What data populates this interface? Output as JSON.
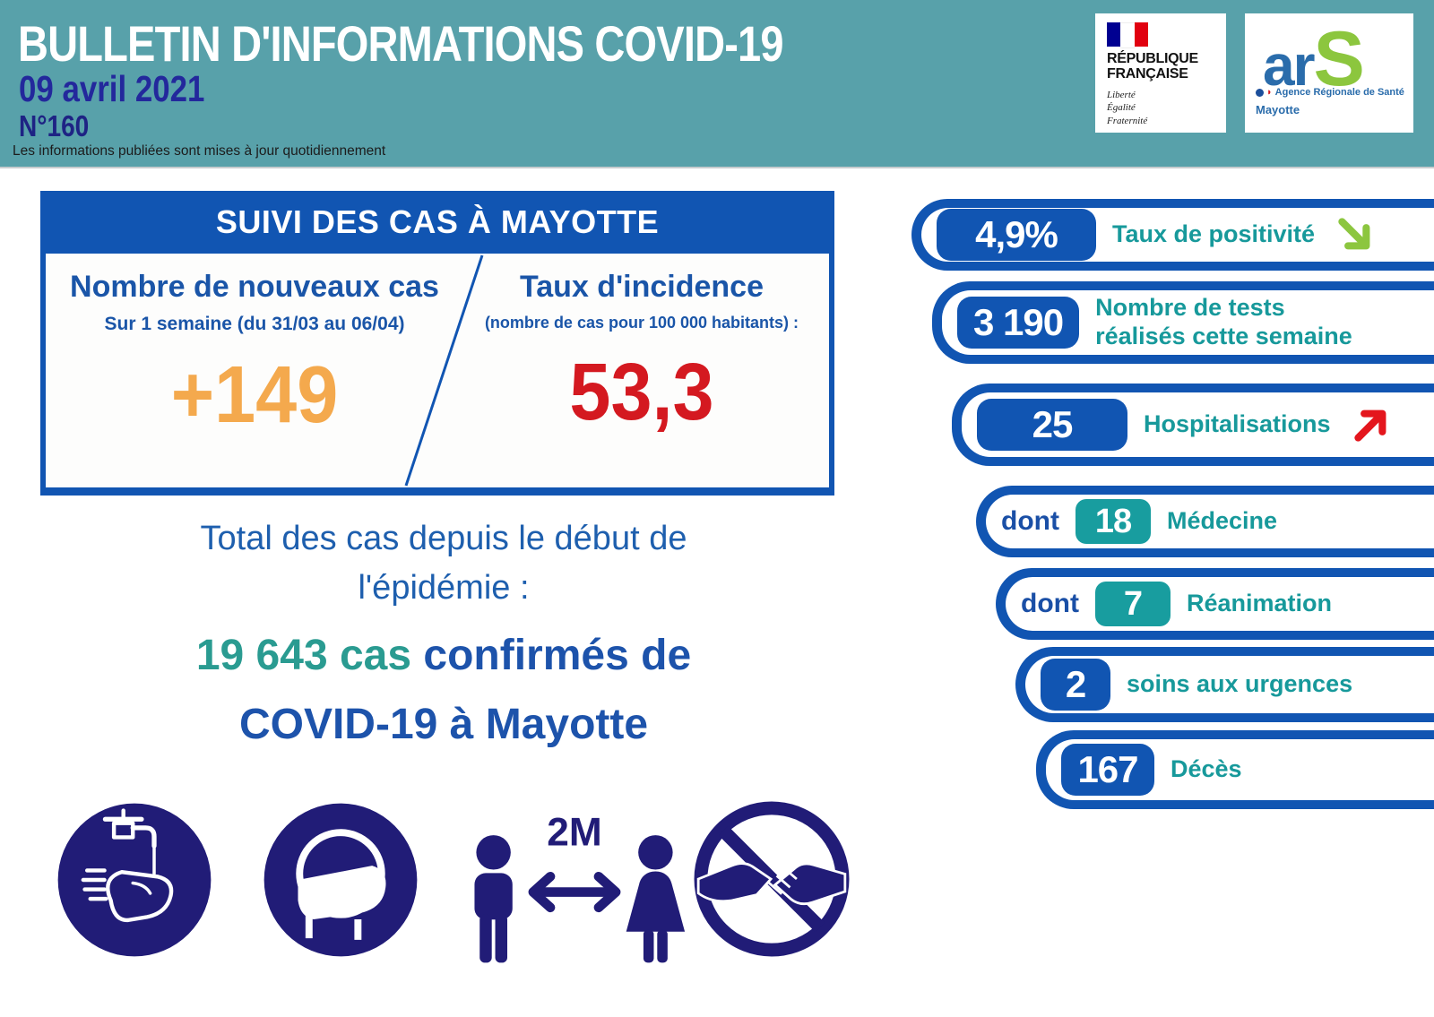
{
  "header": {
    "title": "BULLETIN D'INFORMATIONS COVID-19",
    "date": "09 avril 2021",
    "bulletin_number": "N°160",
    "note": "Les informations publiées sont mises à jour quotidiennement"
  },
  "logos": {
    "republique_francaise": {
      "line1": "RÉPUBLIQUE",
      "line2": "FRANÇAISE",
      "motto1": "Liberté",
      "motto2": "Égalité",
      "motto3": "Fraternité"
    },
    "ars": {
      "ar": "ar",
      "s": "S",
      "agency": "Agence Régionale de Santé",
      "region": "Mayotte"
    }
  },
  "case_card": {
    "title": "SUIVI DES CAS À MAYOTTE",
    "left": {
      "heading": "Nombre de nouveaux cas",
      "subheading": "Sur 1 semaine (du 31/03 au 06/04)",
      "value": "+149"
    },
    "right": {
      "heading": "Taux d'incidence",
      "subheading": "(nombre de cas pour 100 000 habitants) :",
      "value": "53,3"
    }
  },
  "total": {
    "line1": "Total des cas depuis le début de",
    "line2": "l'épidémie :",
    "cases_highlight": "19 643 cas",
    "line3_rest": " confirmés de",
    "line4": "COVID-19 à Mayotte"
  },
  "stats": [
    {
      "prefix": "",
      "value": "4,9%",
      "label_lines": [
        "Taux de positivité"
      ],
      "badge": "blue",
      "arrow": "down"
    },
    {
      "prefix": "",
      "value": "3 190",
      "label_lines": [
        "Nombre de tests",
        "réalisés cette semaine"
      ],
      "badge": "blue",
      "arrow": ""
    },
    {
      "prefix": "",
      "value": "25",
      "label_lines": [
        "Hospitalisations"
      ],
      "badge": "blue",
      "arrow": "up"
    },
    {
      "prefix": "dont",
      "value": "18",
      "label_lines": [
        "Médecine"
      ],
      "badge": "teal",
      "arrow": ""
    },
    {
      "prefix": "dont",
      "value": "7",
      "label_lines": [
        "Réanimation"
      ],
      "badge": "teal",
      "arrow": ""
    },
    {
      "prefix": "",
      "value": "2",
      "label_lines": [
        "soins aux urgences"
      ],
      "badge": "blue",
      "arrow": ""
    },
    {
      "prefix": "",
      "value": "167",
      "label_lines": [
        "Décès"
      ],
      "badge": "blue",
      "arrow": ""
    }
  ],
  "icons": {
    "distance_label": "2M",
    "items": [
      "wash-hands-icon",
      "face-mask-icon",
      "distance-2m-icon",
      "no-handshake-icon"
    ]
  },
  "colors": {
    "header_teal": "#58a1aa",
    "primary_blue": "#1155b2",
    "teal_text": "#17999b",
    "teal_badge": "#189d9f",
    "orange_value": "#f4a94d",
    "red_value": "#d41920",
    "green_arrow": "#8cc63f",
    "red_arrow": "#e4161d",
    "icon_navy": "#211c77",
    "dark_blue_text": "#23289c"
  }
}
